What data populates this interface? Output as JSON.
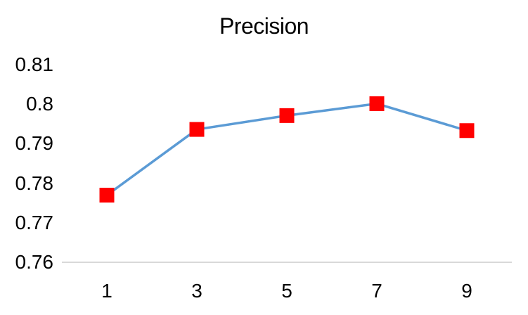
{
  "chart_data": {
    "type": "line",
    "title": "Precision",
    "categories": [
      "1",
      "3",
      "5",
      "7",
      "9"
    ],
    "series": [
      {
        "name": "Precision",
        "values": [
          0.777,
          0.7936,
          0.7971,
          0.8001,
          0.7933
        ]
      }
    ],
    "xlabel": "",
    "ylabel": "",
    "ylim": [
      0.76,
      0.8143
    ],
    "yticks": [
      0.81,
      0.8,
      0.79,
      0.78,
      0.77,
      0.76
    ],
    "ytick_labels": [
      "0.81",
      "0.8",
      "0.79",
      "0.78",
      "0.77",
      "0.76"
    ],
    "xtick_labels": [
      "1",
      "3",
      "5",
      "7",
      "9"
    ],
    "grid": false,
    "legend": "none",
    "marker_shape": "square",
    "colors": {
      "line": "#5B9BD5",
      "marker": "#FF0000",
      "axis_line": "#D9D9D9",
      "text": "#000000",
      "background": "#FFFFFF"
    }
  }
}
